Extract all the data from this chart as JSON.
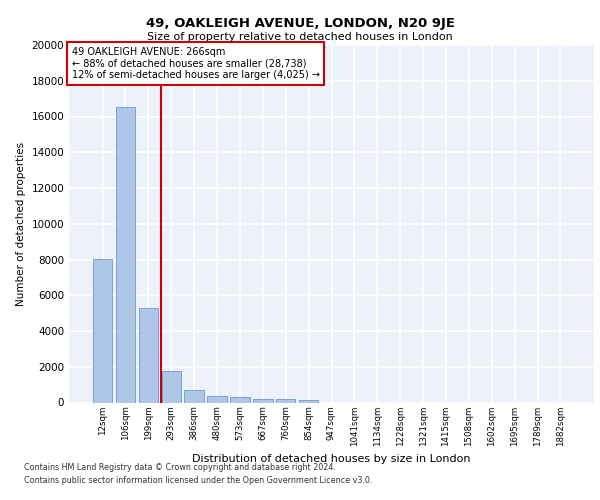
{
  "title_line1": "49, OAKLEIGH AVENUE, LONDON, N20 9JE",
  "title_line2": "Size of property relative to detached houses in London",
  "xlabel": "Distribution of detached houses by size in London",
  "ylabel": "Number of detached properties",
  "categories": [
    "12sqm",
    "106sqm",
    "199sqm",
    "293sqm",
    "386sqm",
    "480sqm",
    "573sqm",
    "667sqm",
    "760sqm",
    "854sqm",
    "947sqm",
    "1041sqm",
    "1134sqm",
    "1228sqm",
    "1321sqm",
    "1415sqm",
    "1508sqm",
    "1602sqm",
    "1695sqm",
    "1789sqm",
    "1882sqm"
  ],
  "values": [
    8050,
    16550,
    5300,
    1750,
    700,
    380,
    280,
    220,
    170,
    130,
    0,
    0,
    0,
    0,
    0,
    0,
    0,
    0,
    0,
    0,
    0
  ],
  "bar_color": "#aec6e8",
  "bar_edge_color": "#5a8abf",
  "vline_x": 2.55,
  "vline_color": "#cc0000",
  "annotation_text": "49 OAKLEIGH AVENUE: 266sqm\n← 88% of detached houses are smaller (28,738)\n12% of semi-detached houses are larger (4,025) →",
  "annotation_box_color": "#cc0000",
  "background_color": "#edf2fa",
  "grid_color": "#ffffff",
  "ylim": [
    0,
    20000
  ],
  "yticks": [
    0,
    2000,
    4000,
    6000,
    8000,
    10000,
    12000,
    14000,
    16000,
    18000,
    20000
  ],
  "footer_line1": "Contains HM Land Registry data © Crown copyright and database right 2024.",
  "footer_line2": "Contains public sector information licensed under the Open Government Licence v3.0."
}
